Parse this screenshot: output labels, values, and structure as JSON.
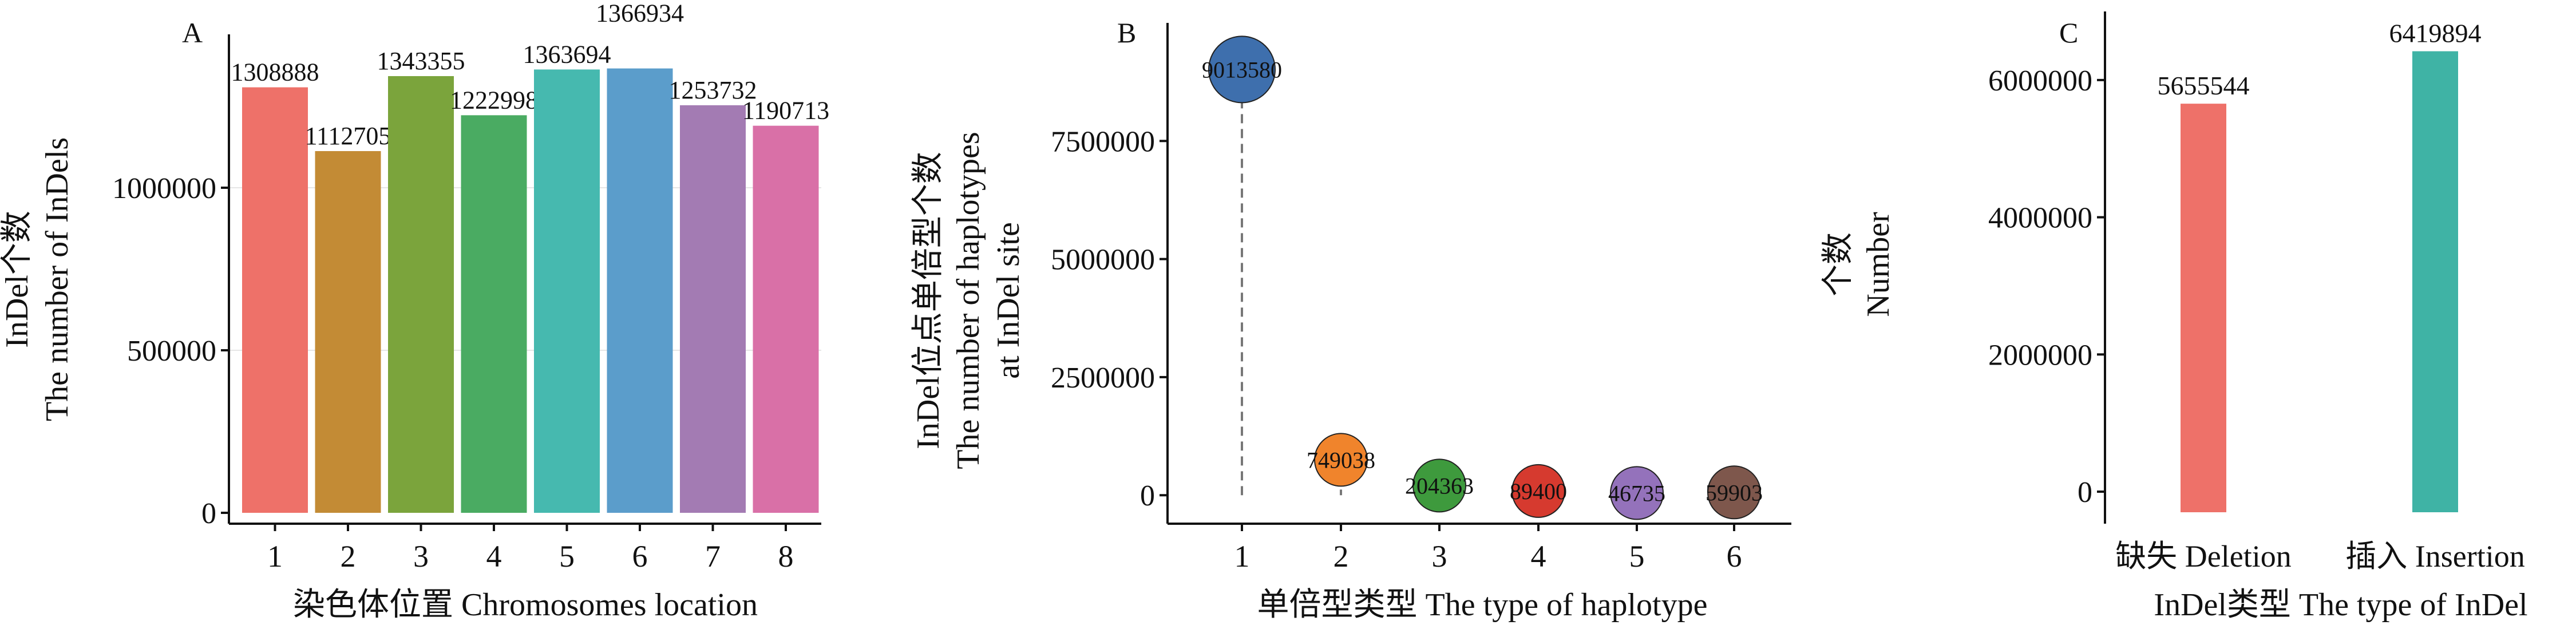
{
  "chart_data": [
    {
      "panel": "A",
      "type": "bar",
      "title": "",
      "xlabel": "染色体位置 Chromosomes location",
      "ylabel_cn": "InDel个数",
      "ylabel_en": "The number of InDels",
      "categories": [
        "1",
        "2",
        "3",
        "4",
        "5",
        "6",
        "7",
        "8"
      ],
      "values": [
        1308888,
        1112705,
        1343355,
        1222998,
        1363694,
        1366934,
        1253732,
        1190713
      ],
      "value_labels": [
        "1308888",
        "1112705",
        "1343355",
        "1222998",
        "1363694",
        "1366934",
        "1253732",
        "1190713"
      ],
      "colors": [
        "#ee7169",
        "#c38b35",
        "#7ba43c",
        "#4aab62",
        "#46b9af",
        "#5b9dcb",
        "#a37bb3",
        "#d970a7"
      ],
      "yticks": [
        0,
        500000,
        1000000
      ],
      "ytick_labels": [
        "0",
        "500000",
        "1000000"
      ],
      "ylim": [
        0,
        1500000
      ]
    },
    {
      "panel": "B",
      "type": "scatter",
      "title": "",
      "xlabel": "单倍型类型 The type of haplotype",
      "ylabel_cn": "InDel位点单倍型个数",
      "ylabel_en1": "The number of haplotypes",
      "ylabel_en2": "at InDel site",
      "categories": [
        "1",
        "2",
        "3",
        "4",
        "5",
        "6"
      ],
      "values": [
        9013580,
        749038,
        204363,
        89400,
        46735,
        59903
      ],
      "value_labels": [
        "9013580",
        "749038",
        "204363",
        "89400",
        "46735",
        "59903"
      ],
      "colors": [
        "#3e6fad",
        "#f0842c",
        "#3e9a3d",
        "#d63a2f",
        "#9472bb",
        "#7e574c"
      ],
      "yticks": [
        0,
        2500000,
        5000000,
        7500000
      ],
      "ytick_labels": [
        "0",
        "2500000",
        "5000000",
        "7500000"
      ],
      "ylim": [
        -300000,
        10000000
      ]
    },
    {
      "panel": "C",
      "type": "bar",
      "title": "",
      "xlabel": "InDel类型 The type of InDel",
      "ylabel_cn": "个数",
      "ylabel_en": "Number",
      "categories": [
        "缺失 Deletion",
        "插入 Insertion"
      ],
      "values": [
        5655544,
        6419894
      ],
      "value_labels": [
        "5655544",
        "6419894"
      ],
      "colors": [
        "#ee7169",
        "#3fb3a5"
      ],
      "yticks": [
        0,
        2000000,
        4000000,
        6000000
      ],
      "ytick_labels": [
        "0",
        "2000000",
        "4000000",
        "6000000"
      ],
      "ylim": [
        -300000,
        7000000
      ]
    }
  ]
}
